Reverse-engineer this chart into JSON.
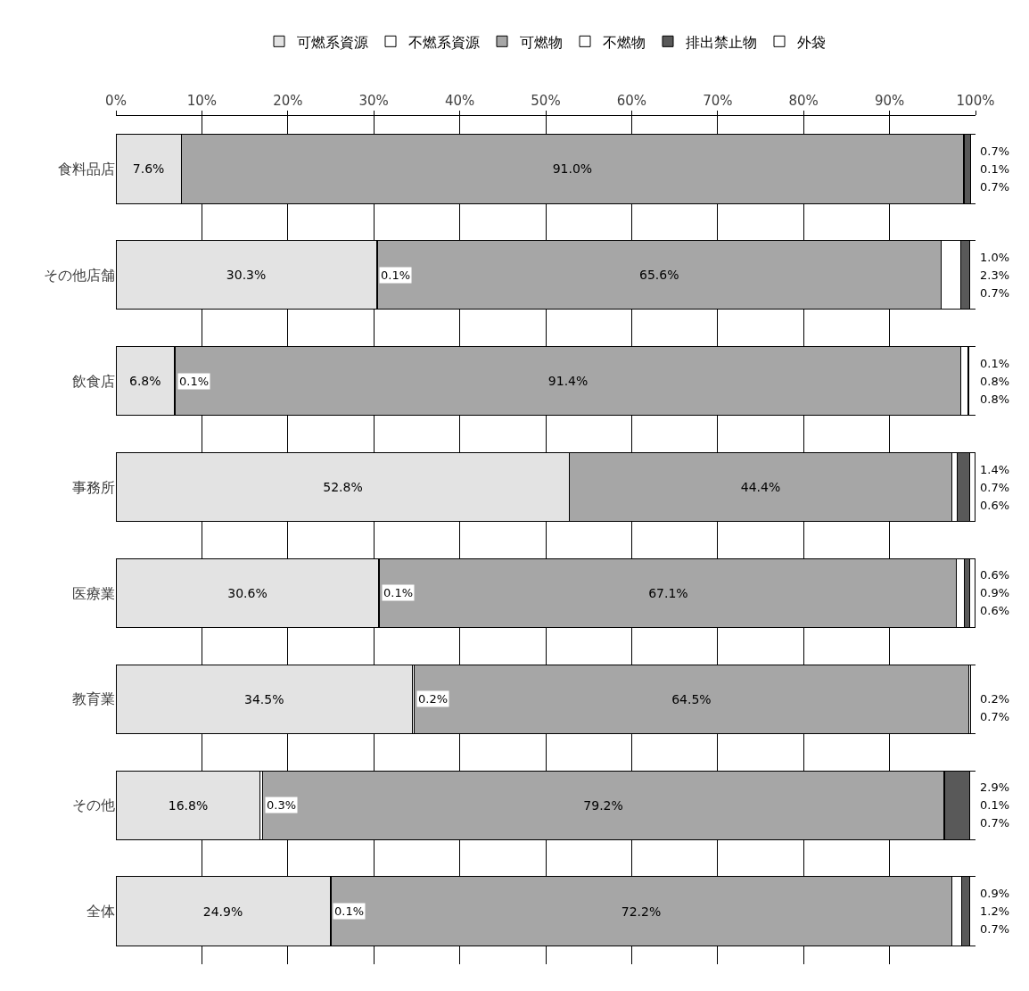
{
  "chart_data": {
    "type": "bar",
    "orientation": "horizontal",
    "stacked": true,
    "categories": [
      "食料品店",
      "その他店舗",
      "飲食店",
      "事務所",
      "医療業",
      "教育業",
      "その他",
      "全体"
    ],
    "series": [
      {
        "name": "可燃系資源",
        "color": "#e3e3e3",
        "values": [
          7.6,
          30.3,
          6.8,
          52.8,
          30.6,
          34.5,
          16.8,
          24.9
        ],
        "value_labels": [
          "7.6%",
          "30.3%",
          "6.8%",
          "52.8%",
          "30.6%",
          "34.5%",
          "16.8%",
          "24.9%"
        ]
      },
      {
        "name": "不燃系資源",
        "color": "#ffffff",
        "values": [
          null,
          0.1,
          0.1,
          null,
          0.1,
          0.2,
          0.3,
          0.1
        ],
        "value_labels": [
          null,
          "0.1%",
          "0.1%",
          null,
          "0.1%",
          "0.2%",
          "0.3%",
          "0.1%"
        ]
      },
      {
        "name": "可燃物",
        "color": "#a6a6a6",
        "values": [
          91.0,
          65.6,
          91.4,
          44.4,
          67.1,
          64.5,
          79.2,
          72.2
        ],
        "value_labels": [
          "91.0%",
          "65.6%",
          "91.4%",
          "44.4%",
          "67.1%",
          "64.5%",
          "79.2%",
          "72.2%"
        ]
      },
      {
        "name": "不燃物",
        "color": "#ffffff",
        "values": [
          0.1,
          2.3,
          0.8,
          0.7,
          0.9,
          0.2,
          0.1,
          1.2
        ],
        "value_labels": [
          "0.1%",
          "2.3%",
          "0.8%",
          "0.7%",
          "0.9%",
          "0.2%",
          "0.1%",
          "1.2%"
        ]
      },
      {
        "name": "排出禁止物",
        "color": "#595959",
        "values": [
          0.7,
          1.0,
          0.1,
          1.4,
          0.6,
          null,
          2.9,
          0.9
        ],
        "value_labels": [
          "0.7%",
          "1.0%",
          "0.1%",
          "1.4%",
          "0.6%",
          null,
          "2.9%",
          "0.9%"
        ]
      },
      {
        "name": "外袋",
        "color": "#ffffff",
        "values": [
          0.7,
          0.7,
          0.8,
          0.6,
          0.6,
          0.7,
          0.7,
          0.7
        ],
        "value_labels": [
          "0.7%",
          "0.7%",
          "0.8%",
          "0.6%",
          "0.6%",
          "0.7%",
          "0.7%",
          "0.7%"
        ]
      }
    ],
    "xlim": [
      0,
      100
    ],
    "xticks": [
      {
        "value": 0,
        "label": "0%"
      },
      {
        "value": 10,
        "label": "10%"
      },
      {
        "value": 20,
        "label": "20%"
      },
      {
        "value": 30,
        "label": "30%"
      },
      {
        "value": 40,
        "label": "40%"
      },
      {
        "value": 50,
        "label": "50%"
      },
      {
        "value": 60,
        "label": "60%"
      },
      {
        "value": 70,
        "label": "70%"
      },
      {
        "value": 80,
        "label": "80%"
      },
      {
        "value": 90,
        "label": "90%"
      },
      {
        "value": 100,
        "label": "100%"
      }
    ],
    "grid": "x",
    "legend": "top"
  }
}
